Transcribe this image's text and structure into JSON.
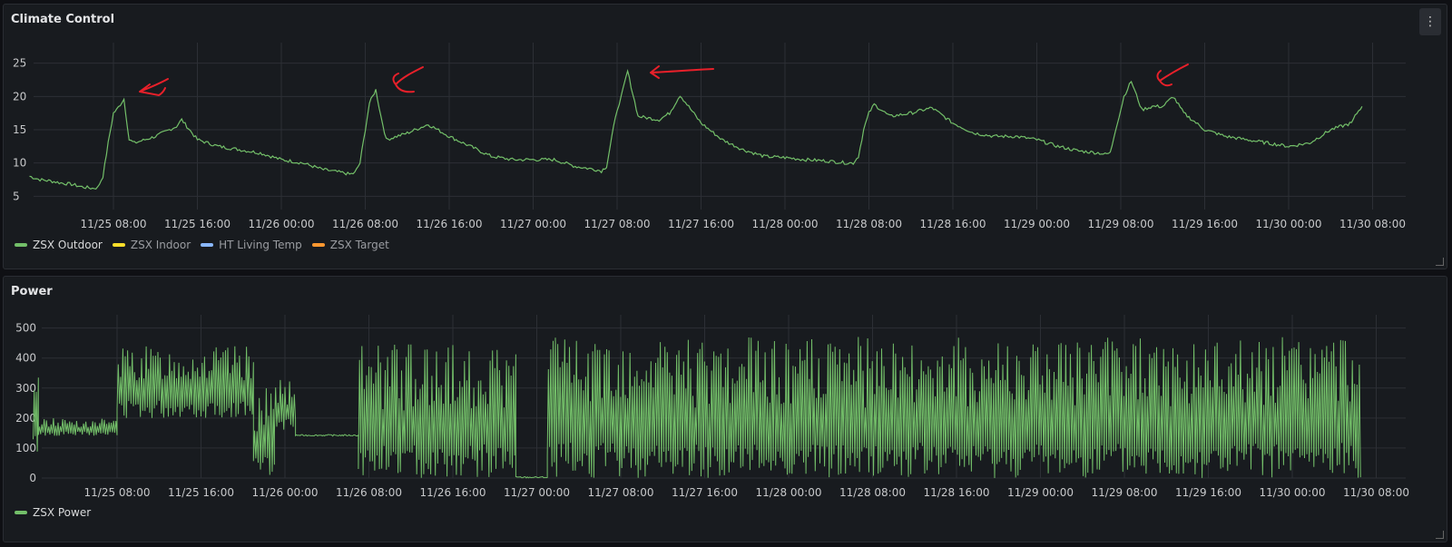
{
  "climate_panel": {
    "title": "Climate Control",
    "menu_icon": "kebab-menu-icon",
    "legend": [
      {
        "label": "ZSX Outdoor",
        "color": "#73bf69",
        "active": true
      },
      {
        "label": "ZSX Indoor",
        "color": "#fade2a",
        "active": false
      },
      {
        "label": "HT Living Temp",
        "color": "#8ab8ff",
        "active": false
      },
      {
        "label": "ZSX Target",
        "color": "#ff9830",
        "active": false
      }
    ]
  },
  "power_panel": {
    "title": "Power",
    "legend": [
      {
        "label": "ZSX Power",
        "color": "#73bf69",
        "active": true
      }
    ]
  },
  "annotation_color": "#e8202a",
  "chart_data": [
    {
      "type": "line",
      "title": "Climate Control",
      "x_ticks": [
        "11/25 08:00",
        "11/25 16:00",
        "11/26 00:00",
        "11/26 08:00",
        "11/26 16:00",
        "11/27 00:00",
        "11/27 08:00",
        "11/27 16:00",
        "11/28 00:00",
        "11/28 08:00",
        "11/28 16:00",
        "11/29 00:00",
        "11/29 08:00",
        "11/29 16:00",
        "11/30 00:00",
        "11/30 08:00"
      ],
      "y_ticks": [
        25,
        20,
        15,
        10,
        5
      ],
      "ylim": [
        3,
        27
      ],
      "grid": true,
      "legend_position": "bottom-left",
      "series": [
        {
          "name": "ZSX Outdoor",
          "color": "#73bf69",
          "x_hours": [
            0,
            1,
            2,
            3,
            4,
            5,
            6,
            6.5,
            7,
            7.5,
            8,
            8.3,
            9,
            9.5,
            10,
            12,
            14,
            14.5,
            16,
            18,
            20,
            22,
            24,
            26,
            28,
            30,
            30.5,
            31,
            31.5,
            32,
            32.4,
            33,
            33.5,
            34,
            36,
            38,
            40,
            42,
            44,
            46,
            48,
            50,
            52,
            54,
            54.5,
            55,
            55.5,
            56,
            56.4,
            57,
            58,
            60,
            61,
            62,
            64,
            66,
            68,
            70,
            72,
            74,
            76,
            78,
            78.5,
            79,
            79.5,
            80,
            80.5,
            82,
            84,
            86,
            88,
            90,
            92,
            94,
            96,
            98,
            100,
            102,
            102.5,
            103,
            103.5,
            104,
            104.3,
            105,
            106,
            107,
            108,
            109,
            110,
            112,
            114,
            116,
            118,
            120,
            122,
            124,
            126,
            126.5,
            127
          ],
          "values": [
            8,
            7.5,
            7.3,
            7,
            6.8,
            6.4,
            6.2,
            6.3,
            8,
            13,
            17.5,
            18,
            19.6,
            13.5,
            13,
            14,
            15.5,
            16.5,
            13.5,
            12.5,
            12,
            11.5,
            10.5,
            10,
            9,
            8.5,
            8.3,
            8.5,
            10,
            15,
            19,
            21,
            17,
            13.5,
            14.5,
            15.8,
            14,
            12.5,
            11,
            10.5,
            10.5,
            10.5,
            9.5,
            9,
            8.8,
            9.5,
            14,
            18,
            20,
            23.8,
            17,
            16.5,
            17.5,
            20.2,
            16,
            13.5,
            12,
            11,
            10.8,
            10.5,
            10.3,
            10,
            10,
            11,
            15,
            17.5,
            18.8,
            17,
            17.5,
            18.3,
            16,
            14.5,
            14,
            14,
            13.5,
            12.5,
            11.8,
            11.5,
            11.3,
            11.5,
            15,
            18,
            20,
            22.3,
            18,
            18.5,
            18.5,
            20,
            17.5,
            15,
            14,
            13.5,
            13,
            12.5,
            13,
            15,
            16,
            17.5,
            18.5
          ]
        }
      ]
    },
    {
      "type": "line",
      "title": "Power",
      "x_ticks": [
        "11/25 08:00",
        "11/25 16:00",
        "11/26 00:00",
        "11/26 08:00",
        "11/26 16:00",
        "11/27 00:00",
        "11/27 08:00",
        "11/27 16:00",
        "11/28 00:00",
        "11/28 08:00",
        "11/28 16:00",
        "11/29 00:00",
        "11/29 08:00",
        "11/29 16:00",
        "11/30 00:00",
        "11/30 08:00"
      ],
      "y_ticks": [
        500,
        400,
        300,
        200,
        100,
        0
      ],
      "ylim": [
        0,
        520
      ],
      "grid": true,
      "legend_position": "bottom-left",
      "series": [
        {
          "name": "ZSX Power",
          "color": "#73bf69",
          "segments": [
            {
              "from_hour": 0,
              "to_hour": 0.5,
              "min": 80,
              "max": 350
            },
            {
              "from_hour": 0.5,
              "to_hour": 8,
              "min": 140,
              "max": 200
            },
            {
              "from_hour": 8,
              "to_hour": 21,
              "min": 200,
              "max": 440
            },
            {
              "from_hour": 21,
              "to_hour": 23,
              "min": 0,
              "max": 300
            },
            {
              "from_hour": 23,
              "to_hour": 25,
              "min": 150,
              "max": 340
            },
            {
              "from_hour": 25,
              "to_hour": 31,
              "min": 140,
              "max": 145
            },
            {
              "from_hour": 31,
              "to_hour": 46,
              "min": 0,
              "max": 450
            },
            {
              "from_hour": 46,
              "to_hour": 49,
              "min": 0,
              "max": 5
            },
            {
              "from_hour": 49,
              "to_hour": 126.5,
              "min": 0,
              "max": 470
            }
          ]
        }
      ]
    }
  ]
}
